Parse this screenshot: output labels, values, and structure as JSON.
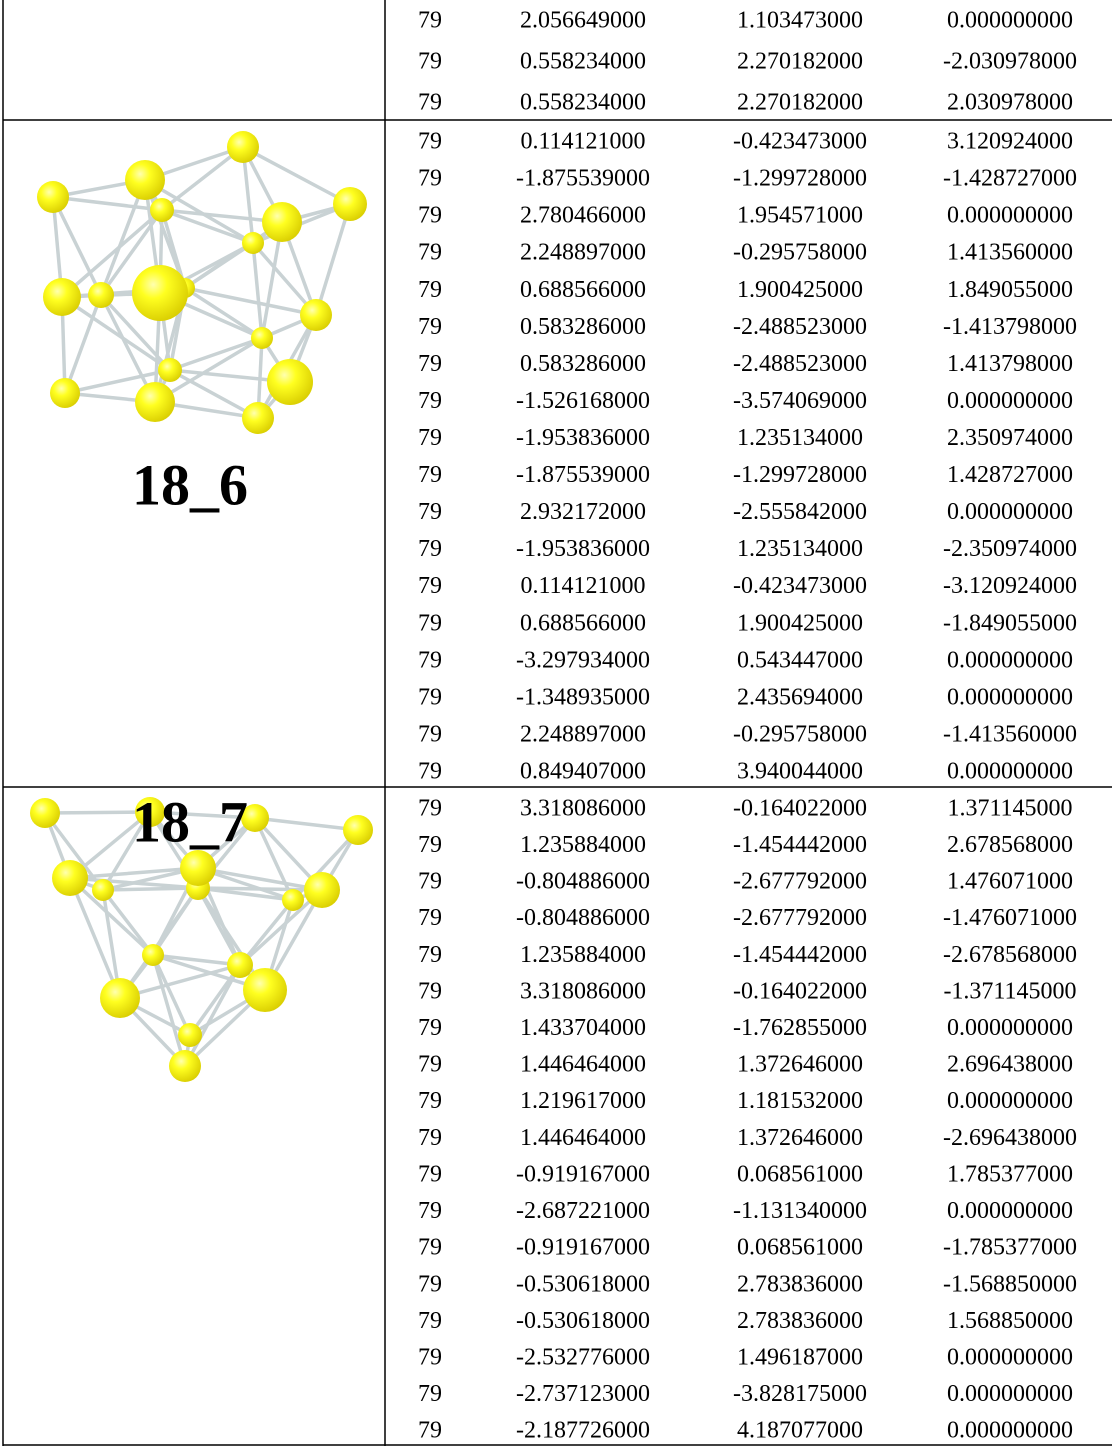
{
  "table": {
    "groups": [
      {
        "rows": [
          [
            "79",
            "2.056649000",
            "1.103473000",
            "0.000000000"
          ],
          [
            "79",
            "0.558234000",
            "2.270182000",
            "-2.030978000"
          ],
          [
            "79",
            "0.558234000",
            "2.270182000",
            "2.030978000"
          ]
        ]
      },
      {
        "label": "18_6",
        "rows": [
          [
            "79",
            "0.114121000",
            "-0.423473000",
            "3.120924000"
          ],
          [
            "79",
            "-1.875539000",
            "-1.299728000",
            "-1.428727000"
          ],
          [
            "79",
            "2.780466000",
            "1.954571000",
            "0.000000000"
          ],
          [
            "79",
            "2.248897000",
            "-0.295758000",
            "1.413560000"
          ],
          [
            "79",
            "0.688566000",
            "1.900425000",
            "1.849055000"
          ],
          [
            "79",
            "0.583286000",
            "-2.488523000",
            "-1.413798000"
          ],
          [
            "79",
            "0.583286000",
            "-2.488523000",
            "1.413798000"
          ],
          [
            "79",
            "-1.526168000",
            "-3.574069000",
            "0.000000000"
          ],
          [
            "79",
            "-1.953836000",
            "1.235134000",
            "2.350974000"
          ],
          [
            "79",
            "-1.875539000",
            "-1.299728000",
            "1.428727000"
          ],
          [
            "79",
            "2.932172000",
            "-2.555842000",
            "0.000000000"
          ],
          [
            "79",
            "-1.953836000",
            "1.235134000",
            "-2.350974000"
          ],
          [
            "79",
            "0.114121000",
            "-0.423473000",
            "-3.120924000"
          ],
          [
            "79",
            "0.688566000",
            "1.900425000",
            "-1.849055000"
          ],
          [
            "79",
            "-3.297934000",
            "0.543447000",
            "0.000000000"
          ],
          [
            "79",
            "-1.348935000",
            "2.435694000",
            "0.000000000"
          ],
          [
            "79",
            "2.248897000",
            "-0.295758000",
            "-1.413560000"
          ],
          [
            "79",
            "0.849407000",
            "3.940044000",
            "0.000000000"
          ]
        ]
      },
      {
        "label": "18_7",
        "rows": [
          [
            "79",
            "3.318086000",
            "-0.164022000",
            "1.371145000"
          ],
          [
            "79",
            "1.235884000",
            "-1.454442000",
            "2.678568000"
          ],
          [
            "79",
            "-0.804886000",
            "-2.677792000",
            "1.476071000"
          ],
          [
            "79",
            "-0.804886000",
            "-2.677792000",
            "-1.476071000"
          ],
          [
            "79",
            "1.235884000",
            "-1.454442000",
            "-2.678568000"
          ],
          [
            "79",
            "3.318086000",
            "-0.164022000",
            "-1.371145000"
          ],
          [
            "79",
            "1.433704000",
            "-1.762855000",
            "0.000000000"
          ],
          [
            "79",
            "1.446464000",
            "1.372646000",
            "2.696438000"
          ],
          [
            "79",
            "1.219617000",
            "1.181532000",
            "0.000000000"
          ],
          [
            "79",
            "1.446464000",
            "1.372646000",
            "-2.696438000"
          ],
          [
            "79",
            "-0.919167000",
            "0.068561000",
            "1.785377000"
          ],
          [
            "79",
            "-2.687221000",
            "-1.131340000",
            "0.000000000"
          ],
          [
            "79",
            "-0.919167000",
            "0.068561000",
            "-1.785377000"
          ],
          [
            "79",
            "-0.530618000",
            "2.783836000",
            "-1.568850000"
          ],
          [
            "79",
            "-0.530618000",
            "2.783836000",
            "1.568850000"
          ],
          [
            "79",
            "-2.532776000",
            "1.496187000",
            "0.000000000"
          ],
          [
            "79",
            "-2.737123000",
            "-3.828175000",
            "0.000000000"
          ],
          [
            "79",
            "-2.187726000",
            "4.187077000",
            "0.000000000"
          ]
        ]
      }
    ]
  }
}
